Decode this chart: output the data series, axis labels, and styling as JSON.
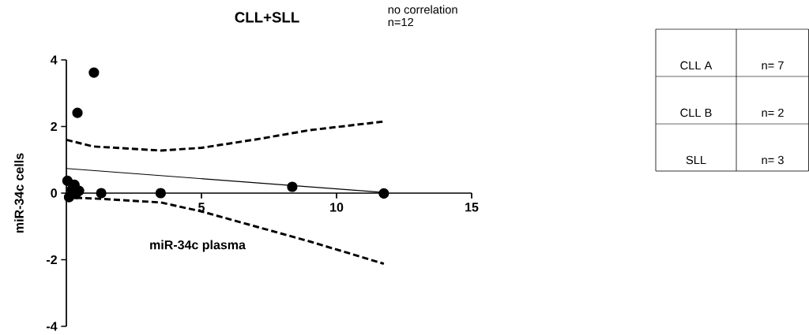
{
  "chart_data": {
    "type": "scatter",
    "title": "CLL+SLL",
    "xlabel": "miR-34c plasma",
    "ylabel": "miR-34c cells",
    "annotations": [
      "no correlation",
      "n=12",
      "CLL A",
      "n= 7",
      "CLL B",
      "n= 2",
      "SLL",
      "n= 3"
    ],
    "xlim": [
      0,
      15
    ],
    "ylim": [
      -4,
      4
    ],
    "xticks": [
      5,
      10,
      15
    ],
    "yticks": [
      -4,
      -2,
      0,
      2,
      4
    ],
    "grid": false,
    "series": [
      {
        "type": "scatter",
        "color": "#000000",
        "marker": "circle",
        "x": [
          1.02,
          0.41,
          0.04,
          0.3,
          0.47,
          0.1,
          0.2,
          0.35,
          1.29,
          3.49,
          8.36,
          11.75
        ],
        "values": [
          3.62,
          2.41,
          0.37,
          0.25,
          0.07,
          -0.12,
          0.1,
          -0.03,
          0.0,
          0.0,
          0.19,
          -0.01
        ]
      },
      {
        "type": "line",
        "color": "#000000",
        "marker": "none",
        "line_style": "solid",
        "x": [
          0,
          11.75
        ],
        "values": [
          0.74,
          0.02
        ]
      },
      {
        "type": "line",
        "color": "#000000",
        "marker": "none",
        "line_style": "dashed",
        "x": [
          0,
          1,
          3.5,
          5,
          7,
          9,
          11.75
        ],
        "values": [
          1.6,
          1.4,
          1.28,
          1.36,
          1.61,
          1.89,
          2.15
        ]
      },
      {
        "type": "line",
        "color": "#000000",
        "marker": "none",
        "line_style": "dashed",
        "x": [
          0,
          1,
          3.5,
          5,
          7,
          9,
          11.75
        ],
        "values": [
          -0.13,
          -0.16,
          -0.28,
          -0.55,
          -1.0,
          -1.45,
          -2.12
        ]
      }
    ]
  }
}
